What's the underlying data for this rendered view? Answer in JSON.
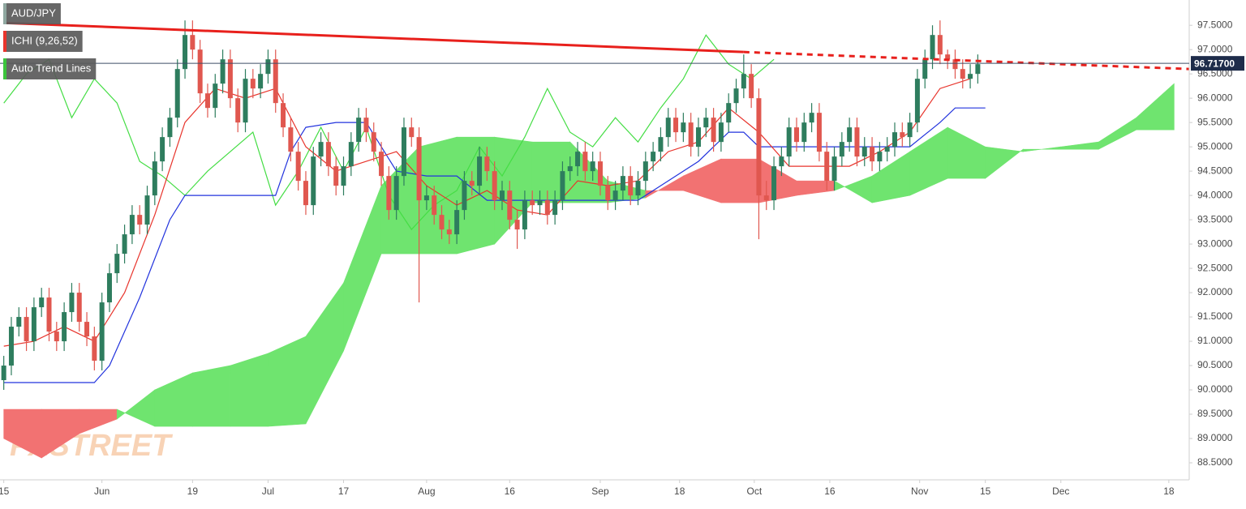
{
  "chart_data": {
    "type": "candlestick",
    "panels": [
      {
        "label": "AUD/JPY",
        "color": "#8fa7a0"
      },
      {
        "label": "ICHI (9,26,52)",
        "color": "#e8342c"
      },
      {
        "label": "Auto Trend Lines",
        "color": "#3cc43c"
      }
    ],
    "watermark": "FXSTREET",
    "up_color": "#2e7d5e",
    "down_color": "#e0574f",
    "xlim": [
      -0.5,
      157
    ],
    "xticks": [
      {
        "value": 0,
        "label": "15"
      },
      {
        "value": 13,
        "label": "Jun"
      },
      {
        "value": 25,
        "label": "19"
      },
      {
        "value": 35,
        "label": "Jul"
      },
      {
        "value": 45,
        "label": "17"
      },
      {
        "value": 56,
        "label": "Aug"
      },
      {
        "value": 67,
        "label": "16"
      },
      {
        "value": 79,
        "label": "Sep"
      },
      {
        "value": 89.5,
        "label": "18"
      },
      {
        "value": 99.4,
        "label": "Oct"
      },
      {
        "value": 109.4,
        "label": "16"
      },
      {
        "value": 121.3,
        "label": "Nov"
      },
      {
        "value": 130,
        "label": "15"
      },
      {
        "value": 140,
        "label": "Dec"
      },
      {
        "value": 154.3,
        "label": "18"
      }
    ],
    "ylim": [
      88.15,
      98.02
    ],
    "yticks": [
      {
        "value": 88.5,
        "label": "88.5000"
      },
      {
        "value": 89,
        "label": "89.0000"
      },
      {
        "value": 89.5,
        "label": "89.5000"
      },
      {
        "value": 90,
        "label": "90.0000"
      },
      {
        "value": 90.5,
        "label": "90.5000"
      },
      {
        "value": 91,
        "label": "91.0000"
      },
      {
        "value": 91.5,
        "label": "91.5000"
      },
      {
        "value": 92,
        "label": "92.0000"
      },
      {
        "value": 92.5,
        "label": "92.5000"
      },
      {
        "value": 93,
        "label": "93.0000"
      },
      {
        "value": 93.5,
        "label": "93.5000"
      },
      {
        "value": 94,
        "label": "94.0000"
      },
      {
        "value": 94.5,
        "label": "94.5000"
      },
      {
        "value": 95,
        "label": "95.0000"
      },
      {
        "value": 95.5,
        "label": "95.5000"
      },
      {
        "value": 96,
        "label": "96.0000"
      },
      {
        "value": 96.5,
        "label": "96.5000"
      },
      {
        "value": 97,
        "label": "97.0000"
      },
      {
        "value": 97.5,
        "label": "97.5000"
      }
    ],
    "last_price": {
      "value": 96.717,
      "label": "96.71700",
      "color": "#1e2c4a"
    },
    "x": [
      0,
      1,
      2,
      3,
      4,
      5,
      6,
      7,
      8,
      9,
      10,
      11,
      12,
      13,
      14,
      15,
      16,
      17,
      18,
      19,
      20,
      21,
      22,
      23,
      24,
      25,
      26,
      27,
      28,
      29,
      30,
      31,
      32,
      33,
      34,
      35,
      36,
      37,
      38,
      39,
      40,
      41,
      42,
      43,
      44,
      45,
      46,
      47,
      48,
      49,
      50,
      51,
      52,
      53,
      54,
      55,
      56,
      57,
      58,
      59,
      60,
      61,
      62,
      63,
      64,
      65,
      66,
      67,
      68,
      69,
      70,
      71,
      72,
      73,
      74,
      75,
      76,
      77,
      78,
      79,
      80,
      81,
      82,
      83,
      84,
      85,
      86,
      87,
      88,
      89,
      90,
      91,
      92,
      93,
      94,
      95,
      96,
      97,
      98,
      99,
      100,
      101,
      102,
      103,
      104,
      105,
      106,
      107,
      108,
      109,
      110,
      111,
      112,
      113,
      114,
      115,
      116,
      117,
      118,
      119,
      120,
      121,
      122,
      123,
      124,
      125,
      126,
      127,
      128,
      129
    ],
    "open": [
      90.2,
      90.5,
      91.3,
      91.5,
      91.0,
      91.7,
      91.9,
      91.2,
      91.0,
      91.6,
      92.0,
      91.4,
      91.1,
      90.6,
      91.8,
      92.4,
      92.8,
      93.2,
      93.6,
      93.4,
      94.0,
      94.7,
      95.2,
      95.6,
      96.6,
      97.3,
      97.0,
      96.1,
      95.8,
      96.3,
      96.8,
      96.0,
      95.5,
      96.4,
      96.2,
      96.5,
      96.8,
      95.9,
      95.4,
      94.9,
      94.3,
      93.8,
      94.8,
      95.1,
      94.6,
      94.2,
      94.6,
      95.1,
      95.6,
      95.3,
      94.9,
      94.4,
      93.7,
      94.4,
      95.4,
      95.2,
      93.9,
      94.0,
      93.6,
      93.3,
      93.2,
      93.7,
      94.3,
      94.2,
      94.8,
      94.5,
      93.9,
      94.1,
      93.5,
      93.3,
      93.9,
      93.8,
      93.9,
      93.6,
      93.9,
      94.5,
      94.6,
      94.9,
      94.5,
      94.7,
      94.2,
      93.9,
      94.1,
      94.4,
      94.0,
      94.3,
      94.7,
      94.9,
      95.2,
      95.6,
      95.3,
      95.5,
      95.0,
      95.4,
      95.6,
      95.1,
      95.5,
      95.9,
      96.2,
      96.5,
      96.0,
      94.0,
      93.9,
      94.6,
      94.8,
      95.4,
      95.1,
      95.5,
      95.7,
      94.9,
      94.3,
      94.8,
      95.1,
      95.4,
      94.8,
      95.0,
      94.7,
      94.9,
      95.0,
      95.3,
      95.2,
      95.5,
      96.4,
      96.8,
      97.3,
      96.9,
      96.8,
      96.6,
      96.4,
      96.5
    ],
    "high": [
      90.7,
      91.5,
      91.7,
      91.7,
      91.9,
      92.1,
      92.1,
      91.4,
      91.8,
      92.2,
      92.2,
      91.6,
      91.3,
      92.0,
      92.6,
      93.0,
      93.4,
      93.8,
      93.8,
      94.2,
      94.9,
      95.4,
      95.8,
      96.8,
      97.6,
      97.6,
      97.2,
      96.3,
      96.5,
      97.0,
      97.0,
      96.2,
      96.6,
      96.6,
      96.7,
      97.0,
      97.0,
      96.1,
      95.6,
      95.1,
      94.5,
      95.0,
      95.3,
      95.3,
      94.8,
      94.8,
      95.3,
      95.8,
      95.8,
      95.5,
      95.1,
      94.6,
      94.6,
      95.6,
      95.6,
      95.4,
      94.2,
      94.2,
      93.8,
      93.5,
      93.9,
      94.5,
      94.5,
      95.0,
      95.0,
      94.7,
      94.3,
      94.3,
      93.7,
      94.1,
      94.1,
      94.1,
      94.1,
      94.1,
      94.7,
      94.8,
      95.1,
      95.1,
      94.9,
      94.9,
      94.4,
      94.3,
      94.6,
      94.6,
      94.5,
      94.9,
      95.1,
      95.4,
      95.8,
      95.8,
      95.7,
      95.7,
      95.6,
      95.8,
      95.8,
      95.7,
      96.1,
      96.4,
      96.9,
      96.7,
      96.2,
      94.3,
      94.8,
      95.0,
      95.6,
      95.6,
      95.7,
      95.9,
      95.9,
      95.1,
      95.0,
      95.3,
      95.6,
      95.6,
      95.2,
      95.2,
      95.1,
      95.2,
      95.5,
      95.5,
      95.7,
      96.6,
      97.0,
      97.5,
      97.6,
      97.0,
      97.0,
      96.8,
      96.7,
      96.9
    ],
    "low": [
      90.0,
      90.3,
      91.1,
      90.8,
      90.8,
      91.5,
      91.0,
      90.8,
      90.8,
      91.4,
      91.2,
      90.9,
      90.4,
      90.4,
      91.6,
      92.2,
      92.6,
      93.0,
      93.2,
      93.2,
      93.8,
      94.5,
      95.0,
      95.4,
      96.4,
      96.8,
      95.9,
      95.6,
      95.6,
      96.1,
      95.8,
      95.3,
      95.3,
      96.0,
      96.0,
      96.3,
      95.7,
      95.2,
      94.7,
      94.1,
      93.6,
      93.6,
      94.6,
      94.4,
      94.0,
      94.0,
      94.4,
      94.9,
      95.1,
      94.7,
      94.2,
      93.5,
      93.5,
      94.2,
      95.0,
      91.8,
      93.7,
      93.4,
      93.1,
      93.0,
      93.0,
      93.5,
      94.0,
      94.0,
      94.3,
      93.7,
      93.7,
      93.3,
      92.9,
      93.1,
      93.6,
      93.6,
      93.4,
      93.4,
      93.7,
      94.3,
      94.4,
      94.3,
      94.3,
      94.0,
      93.7,
      93.7,
      93.9,
      93.8,
      93.8,
      94.1,
      94.5,
      94.7,
      95.0,
      95.1,
      95.1,
      94.8,
      94.8,
      95.2,
      94.9,
      94.9,
      95.3,
      95.7,
      96.0,
      95.8,
      93.1,
      93.7,
      93.7,
      94.4,
      94.6,
      94.9,
      94.9,
      95.3,
      94.7,
      94.1,
      94.1,
      94.6,
      94.9,
      94.6,
      94.6,
      94.5,
      94.5,
      94.7,
      94.8,
      95.0,
      95.0,
      95.3,
      96.2,
      96.6,
      96.7,
      96.6,
      96.4,
      96.2,
      96.2,
      96.3
    ],
    "close": [
      90.5,
      91.3,
      91.5,
      91.0,
      91.7,
      91.9,
      91.2,
      91.0,
      91.6,
      92.0,
      91.4,
      91.1,
      90.6,
      91.8,
      92.4,
      92.8,
      93.2,
      93.6,
      93.4,
      94.0,
      94.7,
      95.2,
      95.6,
      96.6,
      97.3,
      97.0,
      96.1,
      95.8,
      96.3,
      96.8,
      96.0,
      95.5,
      96.4,
      96.2,
      96.5,
      96.8,
      95.9,
      95.4,
      94.9,
      94.3,
      93.8,
      94.8,
      95.1,
      94.6,
      94.2,
      94.6,
      95.1,
      95.6,
      95.3,
      94.9,
      94.4,
      93.7,
      94.4,
      95.4,
      95.2,
      93.9,
      94.0,
      93.6,
      93.3,
      93.2,
      93.7,
      94.3,
      94.2,
      94.8,
      94.5,
      93.9,
      94.1,
      93.5,
      93.3,
      93.9,
      93.8,
      93.9,
      93.6,
      93.9,
      94.5,
      94.6,
      94.9,
      94.5,
      94.7,
      94.2,
      93.9,
      94.1,
      94.4,
      94.0,
      94.3,
      94.7,
      94.9,
      95.2,
      95.6,
      95.3,
      95.5,
      95.0,
      95.4,
      95.6,
      95.1,
      95.5,
      95.9,
      96.2,
      96.5,
      96.0,
      94.0,
      93.9,
      94.6,
      94.8,
      95.4,
      95.1,
      95.5,
      95.7,
      94.9,
      94.3,
      94.8,
      95.1,
      95.4,
      94.8,
      95.0,
      94.7,
      94.9,
      95.0,
      95.3,
      95.2,
      95.5,
      96.4,
      96.8,
      97.3,
      96.9,
      96.8,
      96.6,
      96.4,
      96.5,
      96.7
    ],
    "cloud": {
      "up_color": "#6fe46f",
      "down_color": "#f27272",
      "x": [
        0,
        5,
        10,
        15,
        20,
        25,
        30,
        35,
        40,
        45,
        50,
        55,
        60,
        65,
        70,
        75,
        80,
        85,
        90,
        95,
        100,
        105,
        110,
        115,
        120,
        125,
        130,
        135,
        140,
        145,
        150,
        155
      ],
      "span_a": [
        89.0,
        88.6,
        89.1,
        89.4,
        90.0,
        90.35,
        90.5,
        90.75,
        91.1,
        92.2,
        94.2,
        95.0,
        95.2,
        95.2,
        95.1,
        95.1,
        94.3,
        94.1,
        94.1,
        93.85,
        93.85,
        94.0,
        94.1,
        94.4,
        94.9,
        95.4,
        95.0,
        94.9,
        95.0,
        95.1,
        95.6,
        96.3
      ],
      "span_b": [
        89.6,
        89.6,
        89.6,
        89.6,
        89.25,
        89.25,
        89.25,
        89.25,
        89.3,
        90.8,
        92.8,
        92.8,
        92.8,
        93.0,
        93.85,
        93.85,
        93.85,
        93.95,
        94.4,
        94.75,
        94.75,
        94.3,
        94.3,
        93.85,
        94.0,
        94.35,
        94.35,
        94.95,
        94.95,
        94.95,
        95.35,
        95.35
      ]
    },
    "chikou": {
      "color": "#44dd44",
      "x": [
        0,
        3,
        6,
        9,
        12,
        15,
        18,
        21,
        24,
        27,
        30,
        33,
        36,
        39,
        42,
        45,
        48,
        51,
        54,
        57,
        60,
        63,
        66,
        69,
        72,
        75,
        78,
        81,
        84,
        87,
        90,
        93,
        96,
        99,
        102
      ],
      "values": [
        95.9,
        96.5,
        96.8,
        95.6,
        96.4,
        95.9,
        94.7,
        94.4,
        94.0,
        94.5,
        94.9,
        95.3,
        93.8,
        94.5,
        95.4,
        94.5,
        95.4,
        94.0,
        93.3,
        93.8,
        94.1,
        95.0,
        94.4,
        95.2,
        96.2,
        95.3,
        95.0,
        95.6,
        95.1,
        95.8,
        96.4,
        97.3,
        96.7,
        96.4,
        96.8
      ]
    },
    "kijun": {
      "color": "#2233dd",
      "x": [
        0,
        4,
        8,
        12,
        14,
        18,
        22,
        24,
        28,
        32,
        36,
        38,
        40,
        44,
        48,
        52,
        56,
        60,
        64,
        68,
        72,
        76,
        80,
        84,
        88,
        92,
        96,
        98,
        100,
        104,
        108,
        112,
        116,
        120,
        124,
        126,
        130
      ],
      "values": [
        90.15,
        90.15,
        90.15,
        90.15,
        90.5,
        91.9,
        93.5,
        94.0,
        94.0,
        94.0,
        94.0,
        94.9,
        95.4,
        95.5,
        95.5,
        94.5,
        94.4,
        94.4,
        93.9,
        93.9,
        93.9,
        93.9,
        93.9,
        93.9,
        94.3,
        94.7,
        95.3,
        95.3,
        95.0,
        95.0,
        95.0,
        95.0,
        95.0,
        95.0,
        95.5,
        95.8,
        95.8
      ]
    },
    "tenkan": {
      "color": "#e8342c",
      "x": [
        0,
        4,
        8,
        12,
        16,
        20,
        24,
        28,
        32,
        36,
        40,
        44,
        48,
        52,
        56,
        60,
        64,
        68,
        72,
        76,
        80,
        84,
        88,
        92,
        96,
        100,
        104,
        108,
        112,
        116,
        120,
        124,
        128
      ],
      "values": [
        90.9,
        91.0,
        91.3,
        91.0,
        92.0,
        93.6,
        95.5,
        96.2,
        96.0,
        96.2,
        95.0,
        94.5,
        94.7,
        94.9,
        94.2,
        93.8,
        94.1,
        93.7,
        93.6,
        94.3,
        94.2,
        94.3,
        94.9,
        95.1,
        95.8,
        95.3,
        94.6,
        94.6,
        94.6,
        94.9,
        95.3,
        96.2,
        96.4
      ]
    },
    "trend": {
      "color": "#e8201c",
      "x": [
        0,
        98,
        157
      ],
      "values": [
        97.55,
        96.95,
        96.6
      ]
    }
  }
}
